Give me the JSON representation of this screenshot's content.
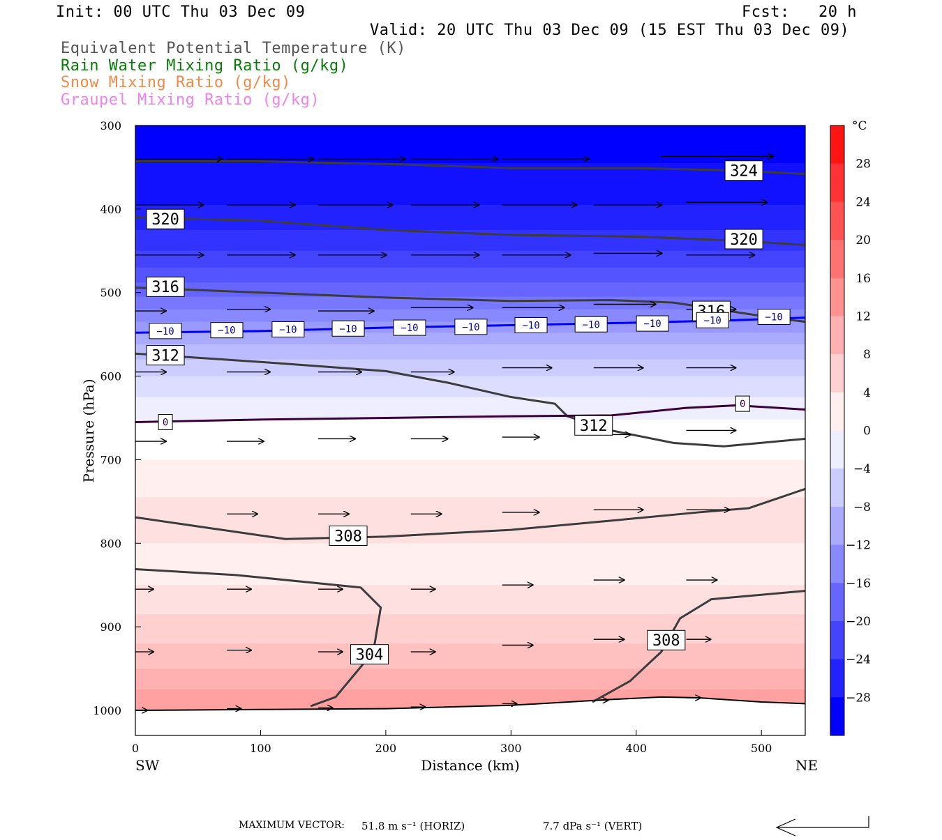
{
  "header": {
    "init": "Init: 00 UTC Thu 03 Dec 09",
    "fcst": "Fcst:   20 h",
    "valid": "Valid: 20 UTC Thu 03 Dec 09 (15 EST Thu 03 Dec 09)",
    "legend": [
      {
        "text": "Equivalent Potential Temperature (K)",
        "color": "#555555"
      },
      {
        "text": "Rain Water Mixing Ratio (g/kg)",
        "color": "#0a7a0a"
      },
      {
        "text": "Snow Mixing Ratio (g/kg)",
        "color": "#f08a4b"
      },
      {
        "text": "Graupel Mixing Ratio (g/kg)",
        "color": "#ee82ee"
      }
    ]
  },
  "footer": {
    "max_vector_label": "MAXIMUM VECTOR:",
    "horiz": "51.8 m s⁻¹ (HORIZ)",
    "vert": "7.7 dPa s⁻¹ (VERT)"
  },
  "chart_data": {
    "type": "heatmap",
    "title": "",
    "xlabel": "Distance (km)",
    "ylabel": "Pressure (hPa)",
    "xlim": [
      0,
      535
    ],
    "ylim": [
      1030,
      300
    ],
    "x_ticks": [
      0,
      100,
      200,
      300,
      400,
      500
    ],
    "y_ticks": [
      300,
      400,
      500,
      600,
      700,
      800,
      900,
      1000
    ],
    "x_left_label": "SW",
    "x_right_label": "NE",
    "temperature_bands": [
      {
        "p_top": 300,
        "p_bot": 345,
        "t": -30
      },
      {
        "p_top": 345,
        "p_bot": 395,
        "t": -28
      },
      {
        "p_top": 395,
        "p_bot": 425,
        "t": -26
      },
      {
        "p_top": 425,
        "p_bot": 450,
        "t": -24
      },
      {
        "p_top": 450,
        "p_bot": 470,
        "t": -22
      },
      {
        "p_top": 470,
        "p_bot": 488,
        "t": -20
      },
      {
        "p_top": 488,
        "p_bot": 505,
        "t": -18
      },
      {
        "p_top": 505,
        "p_bot": 520,
        "t": -16
      },
      {
        "p_top": 520,
        "p_bot": 535,
        "t": -14
      },
      {
        "p_top": 535,
        "p_bot": 548,
        "t": -12
      },
      {
        "p_top": 548,
        "p_bot": 562,
        "t": -10
      },
      {
        "p_top": 562,
        "p_bot": 580,
        "t": -8
      },
      {
        "p_top": 580,
        "p_bot": 600,
        "t": -6
      },
      {
        "p_top": 600,
        "p_bot": 625,
        "t": -4
      },
      {
        "p_top": 625,
        "p_bot": 652,
        "t": -2
      },
      {
        "p_top": 652,
        "p_bot": 700,
        "t": 0
      },
      {
        "p_top": 700,
        "p_bot": 745,
        "t": 2
      },
      {
        "p_top": 745,
        "p_bot": 800,
        "t": 4
      },
      {
        "p_top": 800,
        "p_bot": 850,
        "t": 2
      },
      {
        "p_top": 850,
        "p_bot": 885,
        "t": 4
      },
      {
        "p_top": 885,
        "p_bot": 920,
        "t": 6
      },
      {
        "p_top": 920,
        "p_bot": 950,
        "t": 8
      },
      {
        "p_top": 950,
        "p_bot": 975,
        "t": 10
      },
      {
        "p_top": 975,
        "p_bot": 1000,
        "t": 12
      }
    ],
    "colorbar": {
      "unit": "°C",
      "labels": [
        28,
        24,
        20,
        16,
        12,
        8,
        4,
        0,
        -4,
        -8,
        -12,
        -16,
        -20,
        -24,
        -28
      ],
      "min": -32,
      "max": 32,
      "step": 4
    },
    "theta_e_contours": [
      {
        "label": "324",
        "points": [
          [
            0,
            343
          ],
          [
            100,
            343
          ],
          [
            200,
            346
          ],
          [
            300,
            351
          ],
          [
            400,
            351
          ],
          [
            480,
            354
          ],
          [
            535,
            358
          ]
        ],
        "labels_at": [
          [
            486,
            354
          ]
        ]
      },
      {
        "label": "320",
        "points": [
          [
            0,
            410
          ],
          [
            100,
            414
          ],
          [
            200,
            425
          ],
          [
            300,
            431
          ],
          [
            400,
            433
          ],
          [
            480,
            438
          ],
          [
            535,
            443
          ]
        ],
        "labels_at": [
          [
            24,
            412
          ],
          [
            486,
            436
          ]
        ]
      },
      {
        "label": "316",
        "points": [
          [
            0,
            494
          ],
          [
            100,
            500
          ],
          [
            200,
            506
          ],
          [
            300,
            510
          ],
          [
            380,
            509
          ],
          [
            430,
            512
          ],
          [
            500,
            528
          ],
          [
            535,
            535
          ]
        ],
        "labels_at": [
          [
            24,
            493
          ],
          [
            460,
            522
          ]
        ]
      },
      {
        "label": "312",
        "points": [
          [
            0,
            573
          ],
          [
            100,
            583
          ],
          [
            200,
            594
          ],
          [
            250,
            608
          ],
          [
            300,
            625
          ],
          [
            335,
            633
          ],
          [
            345,
            648
          ],
          [
            380,
            665
          ],
          [
            430,
            680
          ],
          [
            470,
            684
          ],
          [
            535,
            675
          ]
        ],
        "labels_at": [
          [
            24,
            575
          ],
          [
            366,
            659
          ]
        ]
      },
      {
        "label": "308",
        "points": [
          [
            0,
            769
          ],
          [
            60,
            782
          ],
          [
            120,
            795
          ],
          [
            200,
            792
          ],
          [
            300,
            784
          ],
          [
            380,
            773
          ],
          [
            450,
            763
          ],
          [
            490,
            758
          ],
          [
            535,
            735
          ]
        ],
        "labels_at": [
          [
            170,
            791
          ]
        ]
      },
      {
        "label": "304",
        "points": [
          [
            0,
            831
          ],
          [
            80,
            838
          ],
          [
            180,
            853
          ],
          [
            196,
            877
          ],
          [
            190,
            930
          ],
          [
            160,
            984
          ],
          [
            140,
            995
          ]
        ],
        "labels_at": [
          [
            187,
            933
          ]
        ]
      },
      {
        "label": "308",
        "points": [
          [
            535,
            857
          ],
          [
            460,
            867
          ],
          [
            435,
            890
          ],
          [
            420,
            930
          ],
          [
            395,
            965
          ],
          [
            365,
            990
          ]
        ],
        "labels_at": [
          [
            424,
            916
          ]
        ]
      }
    ],
    "isotherm_-10": {
      "label": "-10",
      "color": "#0000ff",
      "points": [
        [
          0,
          548
        ],
        [
          100,
          546
        ],
        [
          200,
          542
        ],
        [
          300,
          539
        ],
        [
          400,
          536
        ],
        [
          480,
          533
        ],
        [
          535,
          530
        ]
      ],
      "labels_at": [
        [
          24,
          546
        ],
        [
          73,
          545
        ],
        [
          122,
          544
        ],
        [
          170,
          543
        ],
        [
          219,
          542
        ],
        [
          268,
          541
        ],
        [
          316,
          539
        ],
        [
          364,
          538
        ],
        [
          413,
          537
        ],
        [
          461,
          533
        ],
        [
          510,
          529
        ]
      ]
    },
    "isotherm_0": {
      "label": "0",
      "color": "#3a003a",
      "points": [
        [
          0,
          655
        ],
        [
          100,
          652
        ],
        [
          200,
          650
        ],
        [
          300,
          648
        ],
        [
          380,
          647
        ],
        [
          440,
          638
        ],
        [
          480,
          635
        ],
        [
          535,
          640
        ]
      ],
      "labels_at": [
        [
          24,
          655
        ],
        [
          485,
          633
        ]
      ]
    },
    "ground": {
      "points": [
        [
          0,
          1000
        ],
        [
          100,
          999
        ],
        [
          200,
          998
        ],
        [
          300,
          994
        ],
        [
          380,
          987
        ],
        [
          420,
          984
        ],
        [
          450,
          985
        ],
        [
          500,
          990
        ],
        [
          535,
          992
        ]
      ]
    },
    "wind_vectors": [
      {
        "x": 0,
        "p": 340,
        "dx": 70
      },
      {
        "x": 73,
        "p": 340,
        "dx": 70
      },
      {
        "x": 146,
        "p": 340,
        "dx": 70
      },
      {
        "x": 220,
        "p": 340,
        "dx": 70
      },
      {
        "x": 293,
        "p": 340,
        "dx": 70
      },
      {
        "x": 420,
        "p": 337,
        "dx": 90
      },
      {
        "x": 0,
        "p": 395,
        "dx": 55
      },
      {
        "x": 73,
        "p": 395,
        "dx": 55
      },
      {
        "x": 146,
        "p": 395,
        "dx": 60
      },
      {
        "x": 220,
        "p": 395,
        "dx": 55
      },
      {
        "x": 293,
        "p": 395,
        "dx": 60
      },
      {
        "x": 366,
        "p": 395,
        "dx": 55
      },
      {
        "x": 440,
        "p": 392,
        "dx": 65
      },
      {
        "x": 0,
        "p": 455,
        "dx": 55
      },
      {
        "x": 73,
        "p": 455,
        "dx": 55
      },
      {
        "x": 146,
        "p": 455,
        "dx": 55
      },
      {
        "x": 220,
        "p": 455,
        "dx": 55
      },
      {
        "x": 293,
        "p": 455,
        "dx": 55
      },
      {
        "x": 366,
        "p": 453,
        "dx": 55
      },
      {
        "x": 440,
        "p": 455,
        "dx": 55
      },
      {
        "x": 0,
        "p": 522,
        "dx": 25
      },
      {
        "x": 73,
        "p": 520,
        "dx": 35
      },
      {
        "x": 146,
        "p": 522,
        "dx": 45
      },
      {
        "x": 220,
        "p": 518,
        "dx": 50
      },
      {
        "x": 293,
        "p": 518,
        "dx": 50
      },
      {
        "x": 366,
        "p": 514,
        "dx": 50
      },
      {
        "x": 440,
        "p": 520,
        "dx": 40
      },
      {
        "x": 0,
        "p": 595,
        "dx": 25
      },
      {
        "x": 73,
        "p": 595,
        "dx": 35
      },
      {
        "x": 146,
        "p": 595,
        "dx": 35
      },
      {
        "x": 220,
        "p": 595,
        "dx": 35
      },
      {
        "x": 293,
        "p": 590,
        "dx": 40
      },
      {
        "x": 366,
        "p": 590,
        "dx": 40
      },
      {
        "x": 440,
        "p": 590,
        "dx": 40
      },
      {
        "x": 0,
        "p": 678,
        "dx": 25
      },
      {
        "x": 73,
        "p": 678,
        "dx": 30
      },
      {
        "x": 146,
        "p": 675,
        "dx": 30
      },
      {
        "x": 220,
        "p": 675,
        "dx": 30
      },
      {
        "x": 293,
        "p": 673,
        "dx": 30
      },
      {
        "x": 366,
        "p": 670,
        "dx": 30
      },
      {
        "x": 440,
        "p": 665,
        "dx": 40
      },
      {
        "x": 0,
        "p": 768,
        "dx": 0
      },
      {
        "x": 73,
        "p": 765,
        "dx": 25
      },
      {
        "x": 146,
        "p": 765,
        "dx": 25
      },
      {
        "x": 220,
        "p": 765,
        "dx": 25
      },
      {
        "x": 293,
        "p": 763,
        "dx": 30
      },
      {
        "x": 366,
        "p": 760,
        "dx": 40
      },
      {
        "x": 440,
        "p": 760,
        "dx": 35
      },
      {
        "x": 0,
        "p": 855,
        "dx": 15
      },
      {
        "x": 73,
        "p": 855,
        "dx": 20
      },
      {
        "x": 146,
        "p": 855,
        "dx": 20
      },
      {
        "x": 220,
        "p": 855,
        "dx": 20
      },
      {
        "x": 293,
        "p": 850,
        "dx": 25
      },
      {
        "x": 366,
        "p": 844,
        "dx": 25
      },
      {
        "x": 440,
        "p": 844,
        "dx": 25
      },
      {
        "x": 0,
        "p": 930,
        "dx": 15
      },
      {
        "x": 73,
        "p": 928,
        "dx": 20
      },
      {
        "x": 146,
        "p": 930,
        "dx": 20
      },
      {
        "x": 220,
        "p": 930,
        "dx": 20
      },
      {
        "x": 293,
        "p": 922,
        "dx": 25
      },
      {
        "x": 366,
        "p": 915,
        "dx": 25
      },
      {
        "x": 440,
        "p": 915,
        "dx": 20
      },
      {
        "x": 0,
        "p": 1000,
        "dx": 10
      },
      {
        "x": 73,
        "p": 998,
        "dx": 12
      },
      {
        "x": 146,
        "p": 997,
        "dx": 12
      },
      {
        "x": 220,
        "p": 996,
        "dx": 12
      },
      {
        "x": 293,
        "p": 992,
        "dx": 12
      },
      {
        "x": 366,
        "p": 988,
        "dx": 12
      },
      {
        "x": 440,
        "p": 985,
        "dx": 12
      }
    ]
  }
}
